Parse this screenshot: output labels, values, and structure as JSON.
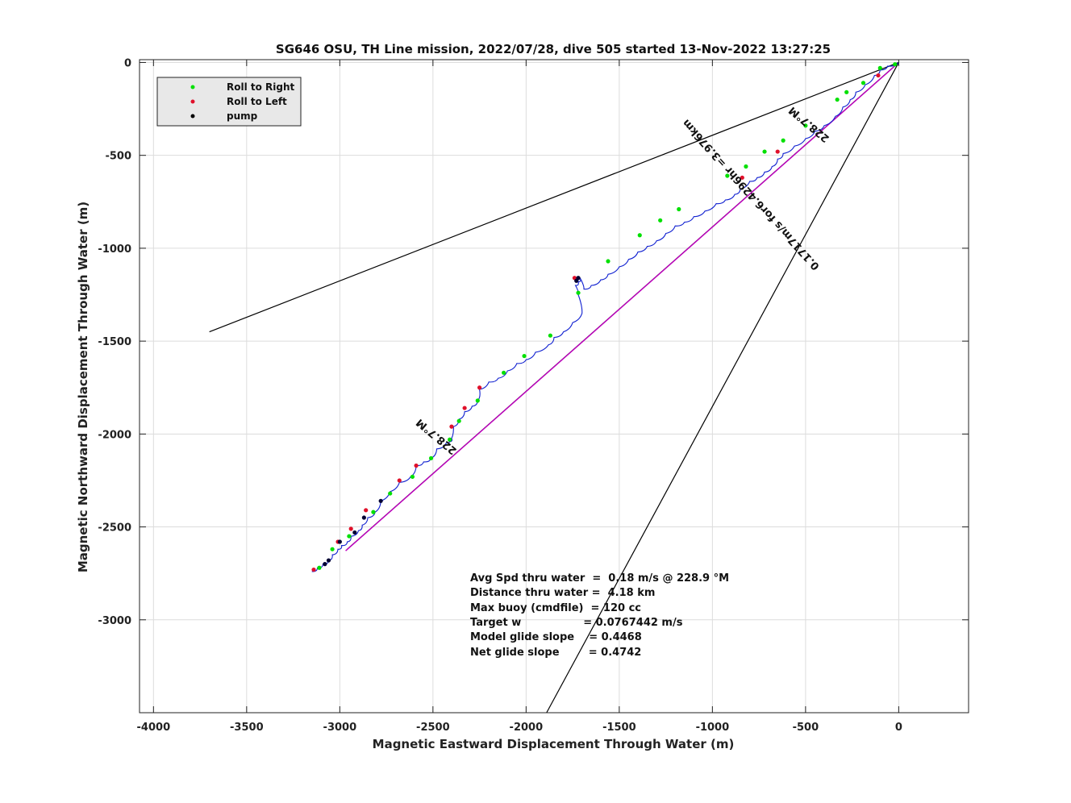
{
  "chart_data": {
    "type": "line",
    "title": "SG646 OSU, TH Line mission, 2022/07/28, dive 505 started 13-Nov-2022 13:27:25",
    "xlabel": "Magnetic Eastward Displacement Through Water (m)",
    "ylabel": "Magnetic Northward Displacement Through Water (m)",
    "xlim": [
      -4075,
      375
    ],
    "ylim": [
      -3500,
      15
    ],
    "xticks": [
      -4000,
      -3500,
      -3000,
      -2500,
      -2000,
      -1500,
      -1000,
      -500,
      0
    ],
    "yticks": [
      0,
      -500,
      -1000,
      -1500,
      -2000,
      -2500,
      -3000
    ],
    "xtick_labels": [
      "-4000",
      "-3500",
      "-3000",
      "-2500",
      "-2000",
      "-1500",
      "-1000",
      "-500",
      "0"
    ],
    "ytick_labels": [
      "0",
      "-500",
      "-1000",
      "-1500",
      "-2000",
      "-2500",
      "-3000"
    ],
    "grid": true,
    "legend": {
      "placement": "top-left",
      "entries": [
        {
          "label": "Roll to Right",
          "color": "#00e000"
        },
        {
          "label": "Roll to Left",
          "color": "#e0102a"
        },
        {
          "label": "pump",
          "color": "#000000"
        }
      ]
    },
    "colors": {
      "track": "#1020d0",
      "roll_right": "#00e000",
      "roll_left": "#e0102a",
      "pump": "#000033",
      "current_vector": "#c000c0",
      "cone": "#000000"
    },
    "track": {
      "x": [
        0,
        -60,
        -100,
        -130,
        -180,
        -230,
        -260,
        -300,
        -340,
        -400,
        -450,
        -500,
        -560,
        -620,
        -650,
        -680,
        -720,
        -760,
        -800,
        -850,
        -880,
        -930,
        -980,
        -1040,
        -1100,
        -1150,
        -1200,
        -1250,
        -1300,
        -1350,
        -1400,
        -1450,
        -1500,
        -1560,
        -1600,
        -1650,
        -1690,
        -1710,
        -1720,
        -1735,
        -1720,
        -1700,
        -1750,
        -1800,
        -1850,
        -1880,
        -1950,
        -2000,
        -2050,
        -2100,
        -2150,
        -2200,
        -2250,
        -2260,
        -2290,
        -2330,
        -2360,
        -2390,
        -2410,
        -2400,
        -2430,
        -2480,
        -2510,
        -2550,
        -2590,
        -2620,
        -2680,
        -2730,
        -2780,
        -2810,
        -2850,
        -2880,
        -2900,
        -2940,
        -2960,
        -2990,
        -3010,
        -3040,
        -3060,
        -3090,
        -3120,
        -3150
      ],
      "y": [
        0,
        -20,
        -40,
        -70,
        -120,
        -160,
        -200,
        -240,
        -290,
        -340,
        -370,
        -410,
        -450,
        -490,
        -520,
        -560,
        -590,
        -620,
        -640,
        -680,
        -710,
        -740,
        -760,
        -800,
        -830,
        -860,
        -880,
        -920,
        -960,
        -990,
        -1020,
        -1060,
        -1100,
        -1140,
        -1170,
        -1200,
        -1220,
        -1160,
        -1180,
        -1200,
        -1250,
        -1350,
        -1400,
        -1450,
        -1480,
        -1520,
        -1560,
        -1600,
        -1620,
        -1660,
        -1700,
        -1720,
        -1760,
        -1820,
        -1850,
        -1880,
        -1920,
        -1960,
        -2040,
        -2020,
        -2050,
        -2080,
        -2130,
        -2150,
        -2170,
        -2230,
        -2260,
        -2310,
        -2360,
        -2420,
        -2450,
        -2490,
        -2520,
        -2550,
        -2580,
        -2600,
        -2620,
        -2650,
        -2680,
        -2700,
        -2720,
        -2740
      ]
    },
    "roll_right": {
      "x": [
        -20,
        -100,
        -190,
        -280,
        -330,
        -500,
        -620,
        -720,
        -820,
        -920,
        -1180,
        -1280,
        -1390,
        -1560,
        -1720,
        -1870,
        -2010,
        -2120,
        -2260,
        -2360,
        -2410,
        -2510,
        -2610,
        -2730,
        -2820,
        -2950,
        -3040,
        -3110
      ],
      "y": [
        -10,
        -30,
        -110,
        -160,
        -200,
        -340,
        -420,
        -480,
        -560,
        -610,
        -790,
        -850,
        -930,
        -1070,
        -1240,
        -1470,
        -1580,
        -1670,
        -1820,
        -1930,
        -2030,
        -2130,
        -2230,
        -2320,
        -2420,
        -2550,
        -2620,
        -2720
      ]
    },
    "roll_left": {
      "x": [
        -110,
        -650,
        -840,
        -1740,
        -2250,
        -2330,
        -2400,
        -2590,
        -2680,
        -2860,
        -2940,
        -3010,
        -3140
      ],
      "y": [
        -70,
        -480,
        -620,
        -1160,
        -1750,
        -1860,
        -1960,
        -2170,
        -2250,
        -2410,
        -2510,
        -2580,
        -2730
      ]
    },
    "pump": {
      "x": [
        -1720,
        -1730,
        -2780,
        -2870,
        -2920,
        -3000,
        -3060,
        -3080
      ],
      "y": [
        -1160,
        -1175,
        -2360,
        -2450,
        -2530,
        -2580,
        -2680,
        -2700
      ]
    },
    "current_vector": {
      "x": [
        0,
        -2960
      ],
      "y": [
        0,
        -2620
      ]
    },
    "cone": [
      {
        "x": [
          0,
          -3700
        ],
        "y": [
          0,
          -1450
        ]
      },
      {
        "x": [
          0,
          -1890
        ],
        "y": [
          0,
          -3500
        ]
      }
    ],
    "heading_labels": [
      {
        "text": "228.7°M",
        "x": -470,
        "y": -320,
        "angle": 40
      },
      {
        "text": "228.7°M",
        "x": -2470,
        "y": -2000,
        "angle": 40
      }
    ],
    "current_label": {
      "text": "0.1717m/s for6.4296hr =3.976km",
      "x": -780,
      "y": -700,
      "angle": 48
    },
    "stats": [
      "Avg Spd thru water  =  0.18 m/s @ 228.9 °M",
      "Distance thru water =  4.18 km",
      "Max buoy (cmdfile)  = 120 cc",
      "Target w                 = 0.0767442 m/s",
      "Model glide slope    = 0.4468",
      "Net glide slope        = 0.4742"
    ]
  }
}
